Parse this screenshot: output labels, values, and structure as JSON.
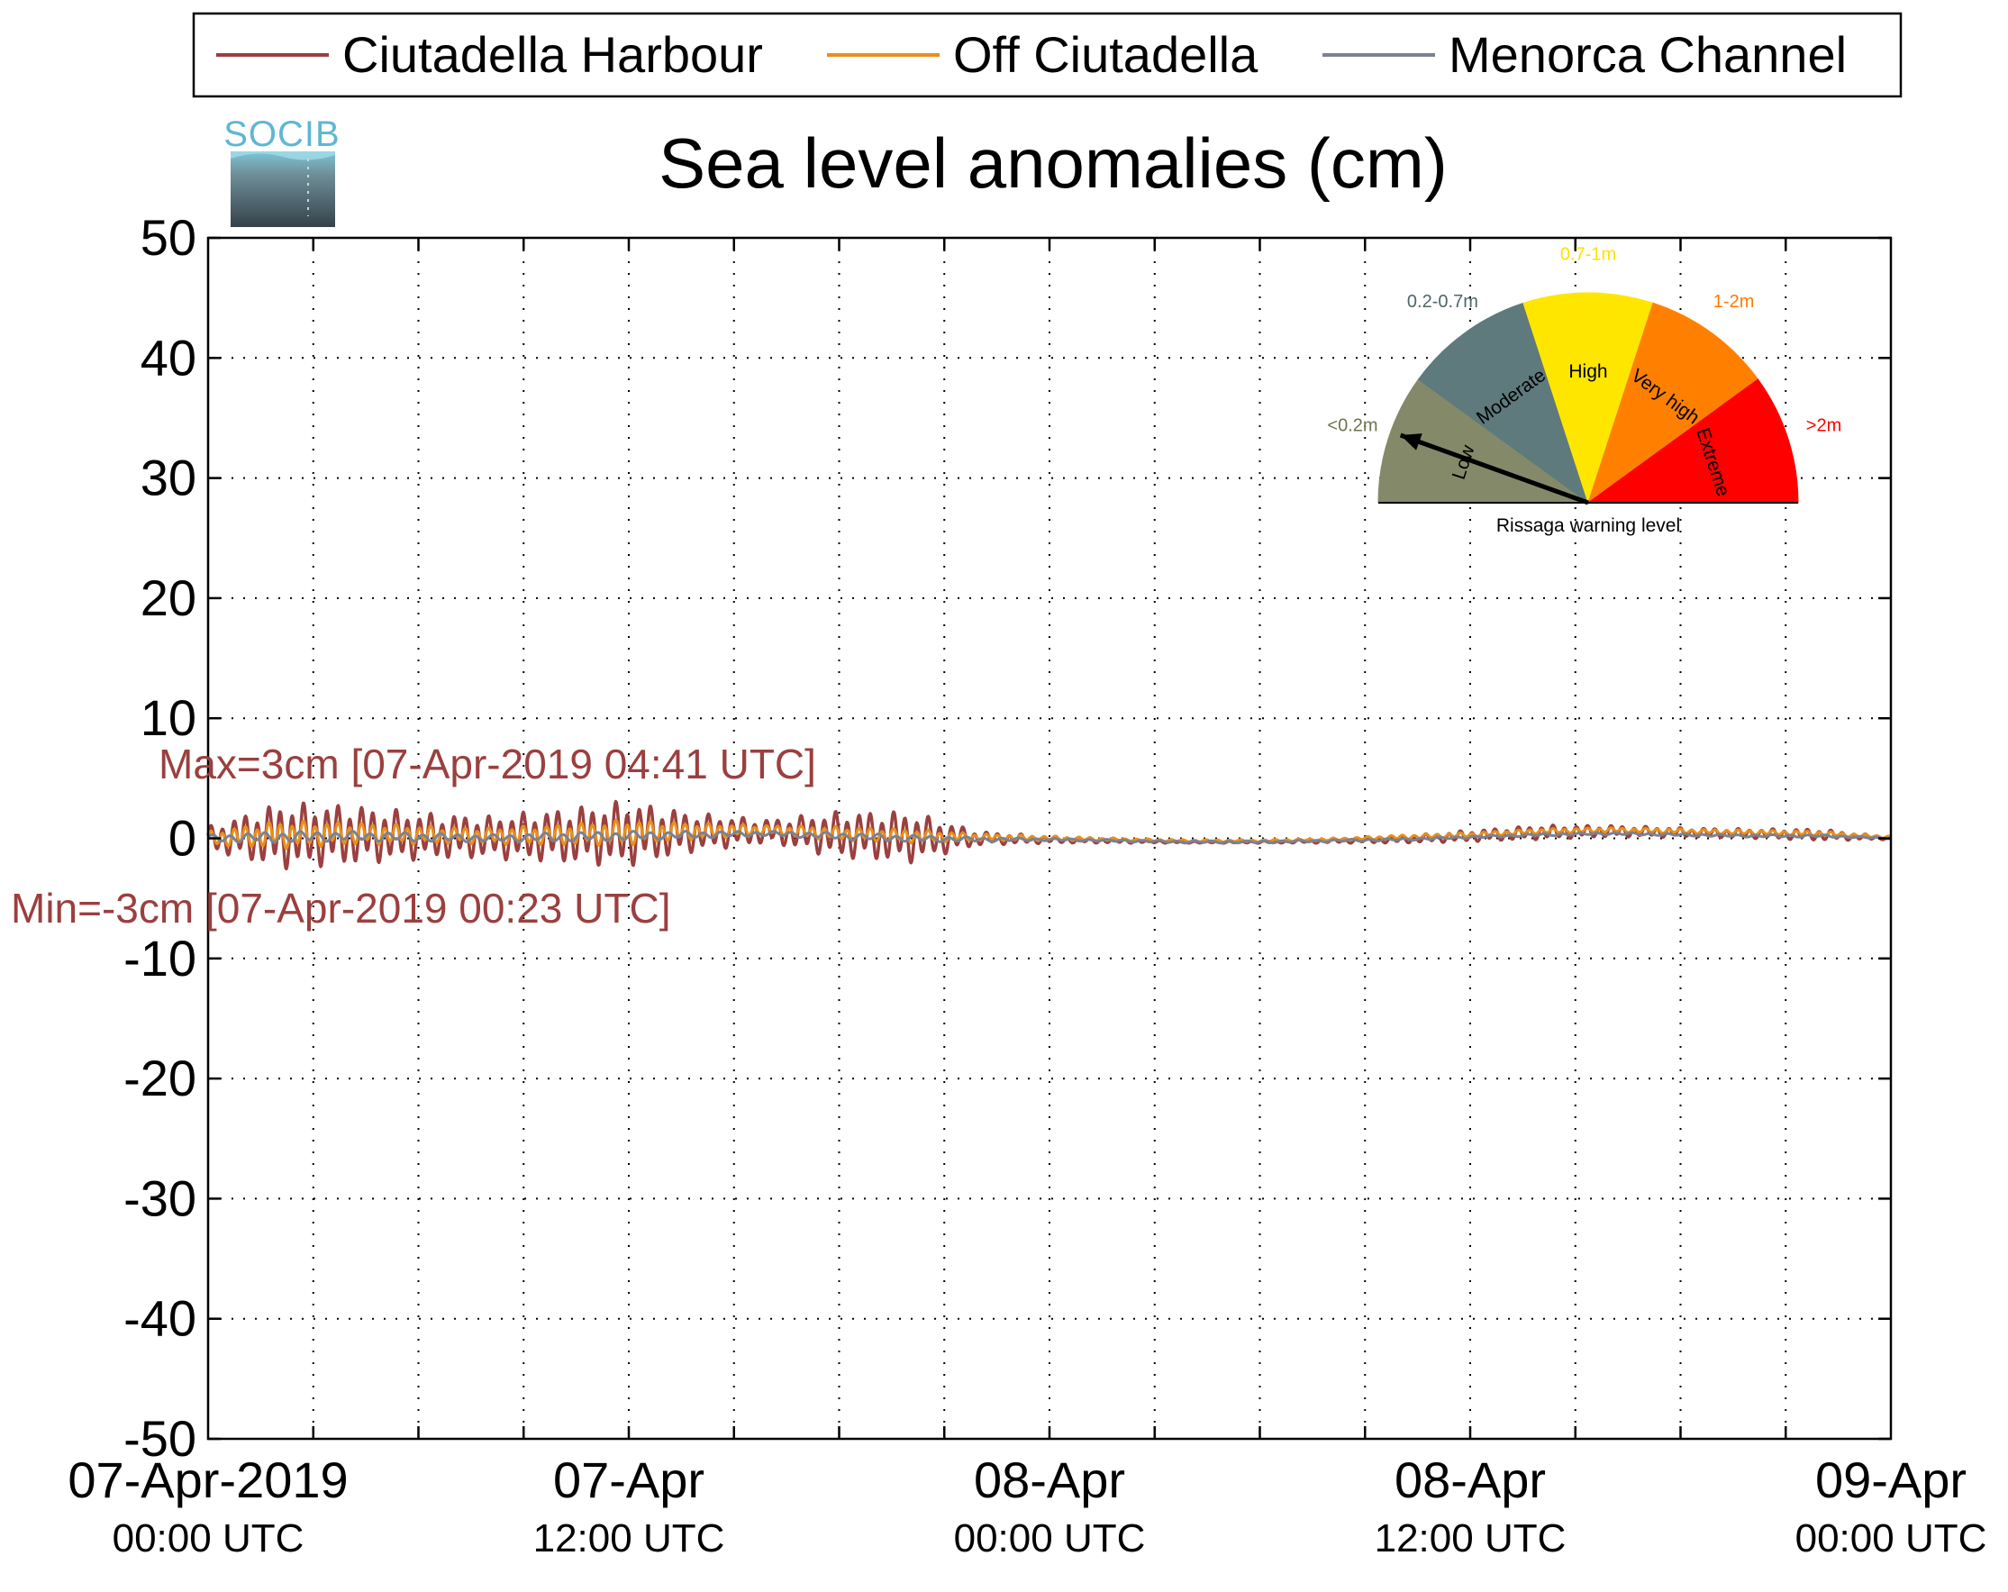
{
  "chart_data": {
    "type": "line",
    "title": "Sea level anomalies (cm)",
    "xlabel": "",
    "ylabel": "",
    "ylim": [
      -50,
      50
    ],
    "yticks": [
      50,
      40,
      30,
      20,
      10,
      0,
      -10,
      -20,
      -30,
      -40,
      -50
    ],
    "yticks_labels": [
      "50",
      "40",
      "30",
      "20",
      "10",
      "0",
      "-10",
      "-20",
      "-30",
      "-40",
      "-50"
    ],
    "xlim_hours": [
      0,
      48
    ],
    "xticks": [
      {
        "hour": 0,
        "line1": "07-Apr-2019",
        "line2": "00:00 UTC"
      },
      {
        "hour": 12,
        "line1": "07-Apr",
        "line2": "12:00 UTC"
      },
      {
        "hour": 24,
        "line1": "08-Apr",
        "line2": "00:00 UTC"
      },
      {
        "hour": 36,
        "line1": "08-Apr",
        "line2": "12:00 UTC"
      },
      {
        "hour": 48,
        "line1": "09-Apr",
        "line2": "00:00 UTC"
      }
    ],
    "grid": true,
    "legend_position": "top",
    "series": [
      {
        "name": "Ciutadella Harbour",
        "color": "#9b3f3f",
        "x": [
          0,
          2,
          4,
          6,
          8,
          10,
          12,
          14,
          16,
          18,
          20,
          22,
          24,
          26,
          28,
          30,
          32,
          34,
          36,
          38,
          40,
          42,
          44,
          46,
          48
        ],
        "amplitude": [
          1.0,
          2.8,
          2.6,
          2.0,
          1.8,
          2.3,
          2.8,
          1.6,
          1.0,
          2.0,
          2.2,
          0.6,
          0.3,
          0.2,
          0.1,
          0.1,
          0.2,
          0.3,
          0.5,
          0.6,
          0.5,
          0.4,
          0.4,
          0.5,
          0.1
        ],
        "mean": [
          0,
          0.2,
          0.3,
          0.2,
          0.1,
          0.2,
          0.4,
          0.5,
          0.6,
          0.3,
          0.1,
          0.0,
          -0.1,
          -0.2,
          -0.3,
          -0.3,
          -0.2,
          -0.1,
          0.2,
          0.5,
          0.6,
          0.5,
          0.4,
          0.3,
          0.0
        ]
      },
      {
        "name": "Off Ciutadella",
        "color": "#e8901c",
        "x": [
          0,
          2,
          4,
          6,
          8,
          10,
          12,
          14,
          16,
          18,
          20,
          22,
          24,
          26,
          28,
          30,
          32,
          34,
          36,
          38,
          40,
          42,
          44,
          46,
          48
        ],
        "amplitude": [
          0.6,
          1.2,
          1.0,
          0.8,
          0.7,
          0.9,
          1.1,
          0.7,
          0.4,
          0.6,
          0.6,
          0.3,
          0.2,
          0.1,
          0.1,
          0.1,
          0.1,
          0.2,
          0.2,
          0.2,
          0.2,
          0.2,
          0.2,
          0.2,
          0.1
        ],
        "mean": [
          0,
          0.3,
          0.4,
          0.3,
          0.2,
          0.3,
          0.5,
          0.6,
          0.7,
          0.4,
          0.2,
          0.1,
          0.0,
          -0.1,
          -0.2,
          -0.2,
          -0.1,
          0.1,
          0.3,
          0.6,
          0.7,
          0.6,
          0.5,
          0.4,
          0.1
        ]
      },
      {
        "name": "Menorca Channel",
        "color": "#7a8294",
        "x": [
          0,
          2,
          4,
          6,
          8,
          10,
          12,
          14,
          16,
          18,
          20,
          22,
          24,
          26,
          28,
          30,
          32,
          34,
          36,
          38,
          40,
          42,
          44,
          46,
          48
        ],
        "amplitude": [
          0.3,
          0.5,
          0.4,
          0.4,
          0.3,
          0.4,
          0.4,
          0.3,
          0.2,
          0.3,
          0.3,
          0.2,
          0.1,
          0.1,
          0.1,
          0.1,
          0.1,
          0.1,
          0.1,
          0.1,
          0.1,
          0.1,
          0.1,
          0.1,
          0.05
        ],
        "mean": [
          0,
          0.1,
          0.2,
          0.1,
          0.0,
          0.1,
          0.2,
          0.3,
          0.4,
          0.2,
          0.0,
          -0.1,
          -0.1,
          -0.2,
          -0.3,
          -0.3,
          -0.2,
          -0.1,
          0.1,
          0.3,
          0.4,
          0.3,
          0.2,
          0.2,
          0.0
        ]
      }
    ],
    "annotations": {
      "max": "Max=3cm [07-Apr-2019 04:41 UTC]",
      "min": "Min=-3cm [07-Apr-2019 00:23 UTC]",
      "color": "#9b3f3f"
    }
  },
  "logo": {
    "text": "SOCIB",
    "color": "#5fb6d4"
  },
  "gauge": {
    "caption": "Rissaga warning level",
    "needle_value_fraction": 0.05,
    "sectors": [
      {
        "name": "Low",
        "range": "<0.2m",
        "color": "#848a69",
        "range_color": "#6e7450"
      },
      {
        "name": "Moderate",
        "range": "0.2-0.7m",
        "color": "#5e7a7c",
        "range_color": "#4e6668"
      },
      {
        "name": "High",
        "range": "0.7-1m",
        "color": "#ffe600",
        "range_color": "#ffe000"
      },
      {
        "name": "Very high",
        "range": "1-2m",
        "color": "#ff8000",
        "range_color": "#ff7a00"
      },
      {
        "name": "Extreme",
        "range": ">2m",
        "color": "#ff0000",
        "range_color": "#ff0000"
      }
    ]
  }
}
